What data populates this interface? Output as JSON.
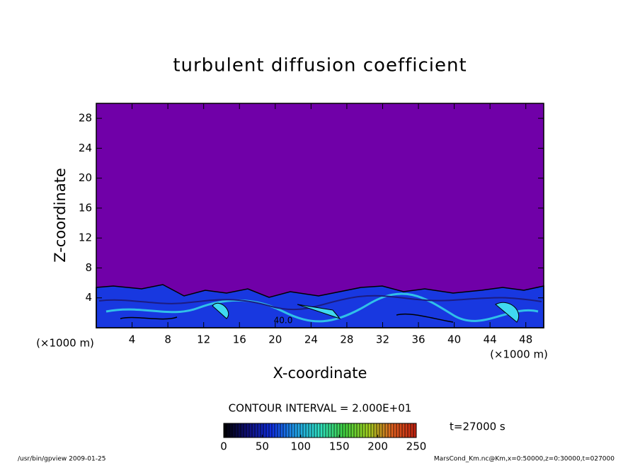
{
  "chart_data": {
    "type": "shaded-contour",
    "title": "turbulent diffusion coefficient",
    "x_label": "X-coordinate",
    "y_label": "Z-coordinate",
    "x_unit": "(×1000 m)",
    "y_unit": "(×1000 m)",
    "xlim": [
      0,
      50
    ],
    "xticks": [
      4,
      8,
      12,
      16,
      20,
      24,
      28,
      32,
      36,
      40,
      44,
      48
    ],
    "ylim": [
      0,
      30
    ],
    "yticks": [
      4,
      8,
      12,
      16,
      20,
      24,
      28
    ],
    "field_color": "#7000a8",
    "contour_label": "40.0",
    "contour_interval": "CONTOUR INTERVAL = 2.000E+01",
    "time": "t=27000 s",
    "colorbar": {
      "clim": [
        0,
        250
      ],
      "ticks": [
        0,
        50,
        100,
        150,
        200,
        250
      ],
      "colors": [
        "#000000",
        "#10107a",
        "#1030e0",
        "#20a0e8",
        "#30e0c0",
        "#40d040",
        "#a0d020",
        "#e06020",
        "#c02010"
      ]
    },
    "footer_left": "/usr/bin/gpview  2009-01-25",
    "footer_right": "MarsCond_Km.nc@Km,x=0:50000,z=0:30000,t=027000"
  }
}
